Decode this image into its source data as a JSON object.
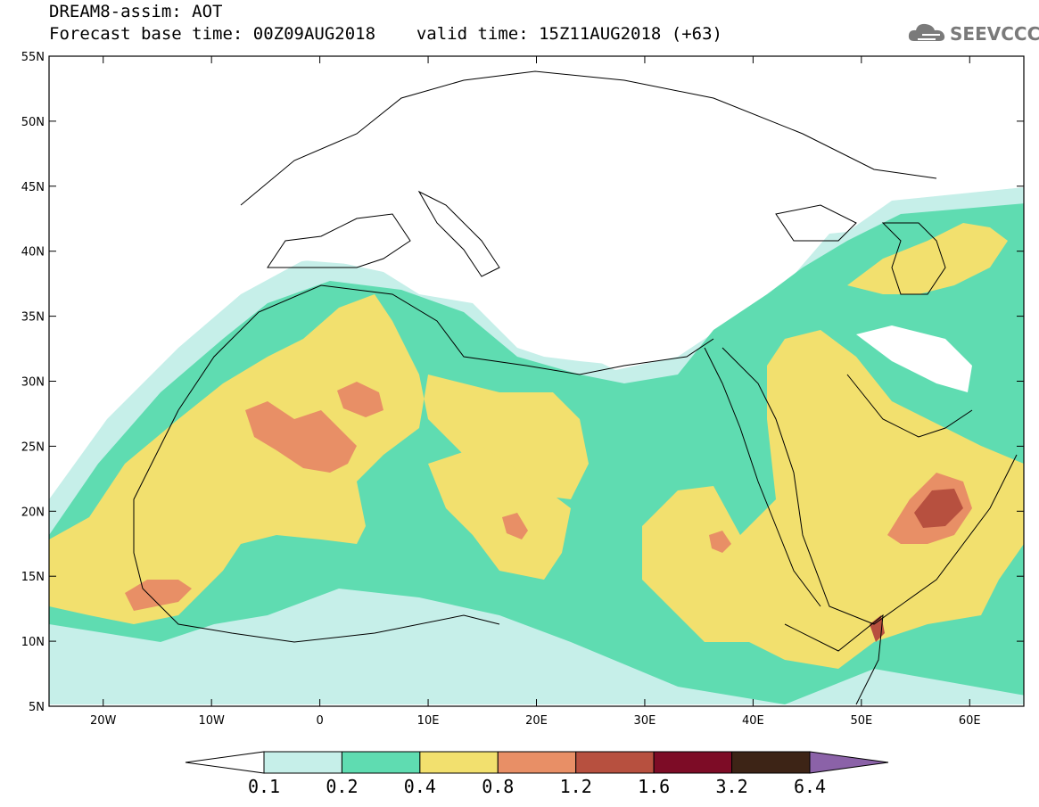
{
  "header": {
    "title": "DREAM8-assim: AOT",
    "base_time_label": "Forecast base time: 00Z09AUG2018",
    "valid_time_label": "valid time: 15Z11AUG2018 (+63)"
  },
  "logo": {
    "text": "SEEVCCC",
    "icon": "cloud-icon",
    "color": "#7a7a7a"
  },
  "map": {
    "extent": {
      "lon": [
        -25,
        65
      ],
      "lat": [
        5,
        55
      ]
    },
    "lat_ticks": [
      "55N",
      "50N",
      "45N",
      "40N",
      "35N",
      "30N",
      "25N",
      "20N",
      "15N",
      "10N",
      "5N"
    ],
    "lon_ticks": [
      "20W",
      "10W",
      "0",
      "10E",
      "20E",
      "30E",
      "40E",
      "50E",
      "60E"
    ]
  },
  "colorbar": {
    "levels": [
      "0.1",
      "0.2",
      "0.4",
      "0.8",
      "1.2",
      "1.6",
      "3.2",
      "6.4"
    ],
    "colors": [
      "#c6efe9",
      "#5fdcb1",
      "#f2e06e",
      "#e88f66",
      "#b7503f",
      "#7d0c26",
      "#3d2416"
    ],
    "over_color": "#8b62a8",
    "under_color": "#ffffff"
  }
}
